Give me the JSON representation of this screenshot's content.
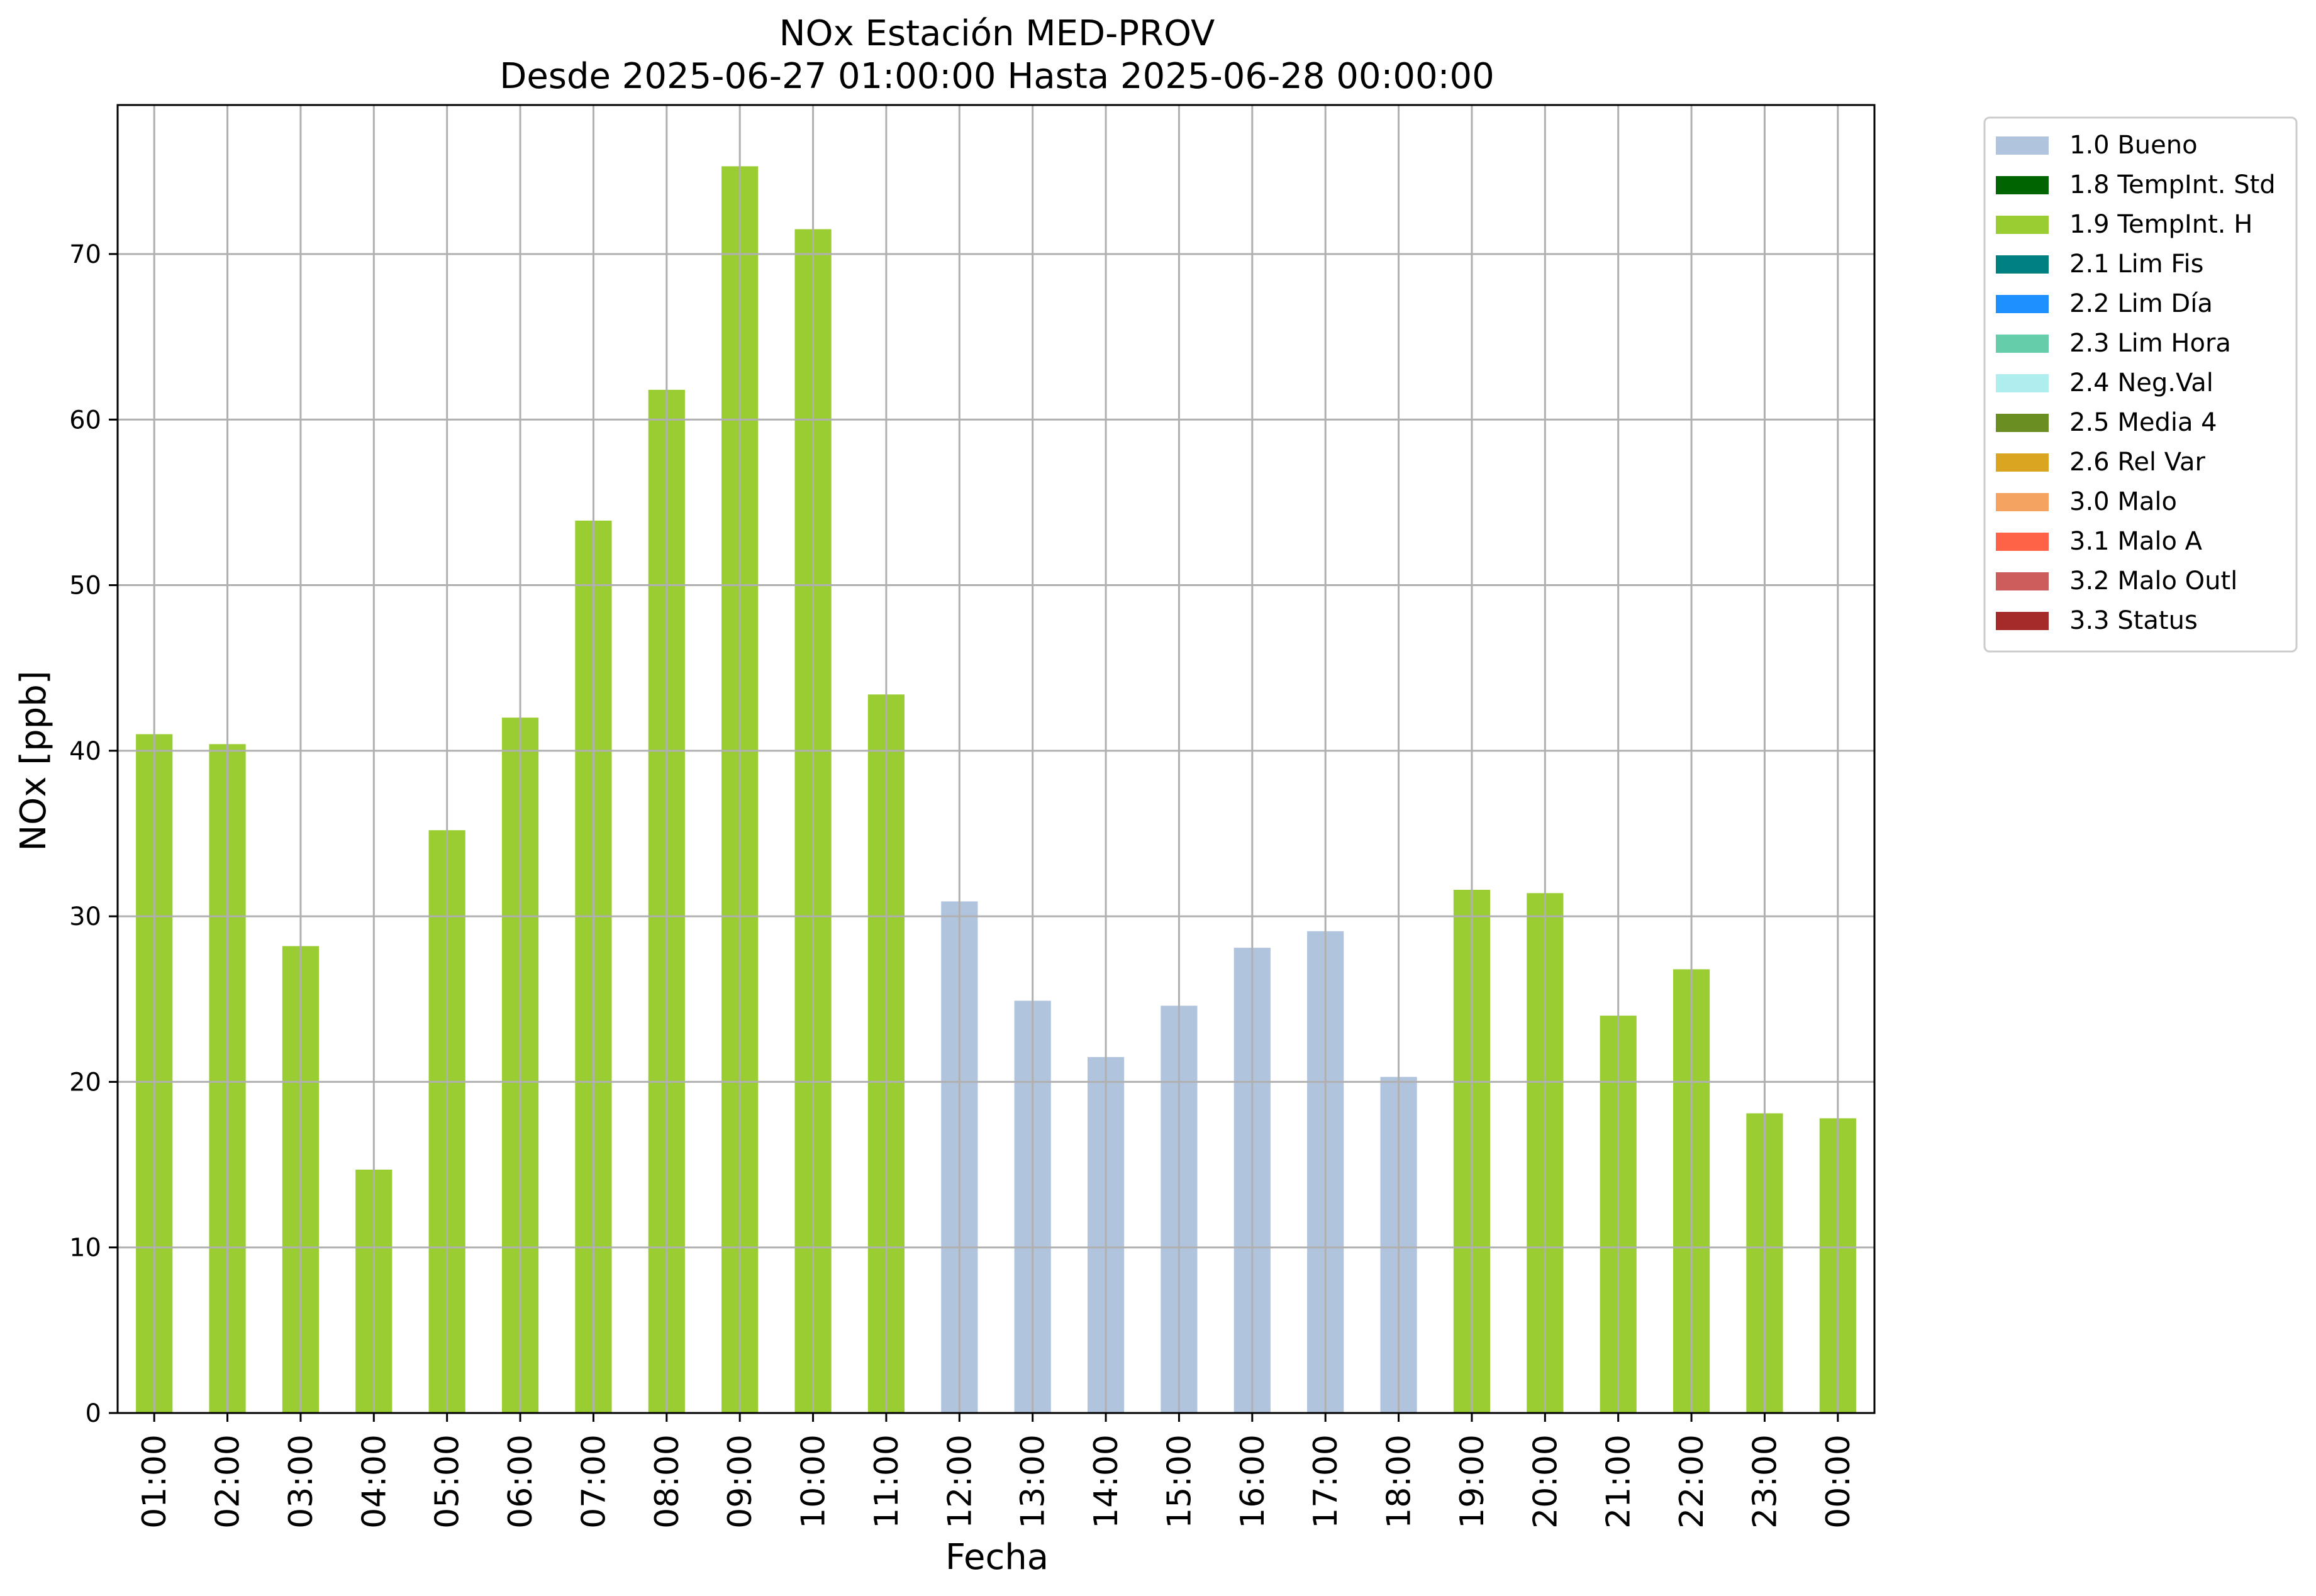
{
  "chart_data": {
    "type": "bar",
    "title": "NOx Estación MED-PROV",
    "subtitle": "Desde 2025-06-27 01:00:00 Hasta 2025-06-28 00:00:00",
    "xlabel": "Fecha",
    "ylabel": "NOx [ppb]",
    "ylim": [
      0,
      79
    ],
    "yticks": [
      0,
      10,
      20,
      30,
      40,
      50,
      60,
      70
    ],
    "grid": true,
    "legend_position": "outside-top-right",
    "categories": [
      "01:00",
      "02:00",
      "03:00",
      "04:00",
      "05:00",
      "06:00",
      "07:00",
      "08:00",
      "09:00",
      "10:00",
      "11:00",
      "12:00",
      "13:00",
      "14:00",
      "15:00",
      "16:00",
      "17:00",
      "18:00",
      "19:00",
      "20:00",
      "21:00",
      "22:00",
      "23:00",
      "00:00"
    ],
    "values": [
      41.0,
      40.4,
      28.2,
      14.7,
      35.2,
      42.0,
      53.9,
      61.8,
      75.3,
      71.5,
      43.4,
      30.9,
      24.9,
      21.5,
      24.6,
      28.1,
      29.1,
      20.3,
      31.6,
      31.4,
      24.0,
      26.8,
      18.1,
      17.8
    ],
    "flags": [
      "1.9 TempInt. H",
      "1.9 TempInt. H",
      "1.9 TempInt. H",
      "1.9 TempInt. H",
      "1.9 TempInt. H",
      "1.9 TempInt. H",
      "1.9 TempInt. H",
      "1.9 TempInt. H",
      "1.9 TempInt. H",
      "1.9 TempInt. H",
      "1.9 TempInt. H",
      "1.0 Bueno",
      "1.0 Bueno",
      "1.0 Bueno",
      "1.0 Bueno",
      "1.0 Bueno",
      "1.0 Bueno",
      "1.0 Bueno",
      "1.9 TempInt. H",
      "1.9 TempInt. H",
      "1.9 TempInt. H",
      "1.9 TempInt. H",
      "1.9 TempInt. H",
      "1.9 TempInt. H"
    ],
    "legend": [
      {
        "label": "1.0 Bueno",
        "color": "#b0c4de"
      },
      {
        "label": "1.8 TempInt. Std",
        "color": "#006400"
      },
      {
        "label": "1.9 TempInt. H",
        "color": "#9acd32"
      },
      {
        "label": "2.1 Lim Fis",
        "color": "#008080"
      },
      {
        "label": "2.2 Lim Día",
        "color": "#1e90ff"
      },
      {
        "label": "2.3 Lim Hora",
        "color": "#66cdaa"
      },
      {
        "label": "2.4 Neg.Val",
        "color": "#afeeee"
      },
      {
        "label": "2.5 Media 4",
        "color": "#6b8e23"
      },
      {
        "label": "2.6 Rel Var",
        "color": "#daa520"
      },
      {
        "label": "3.0 Malo",
        "color": "#f4a460"
      },
      {
        "label": "3.1 Malo A",
        "color": "#ff6347"
      },
      {
        "label": "3.2 Malo Outl",
        "color": "#cd5c5c"
      },
      {
        "label": "3.3 Status",
        "color": "#a52a2a"
      }
    ]
  }
}
